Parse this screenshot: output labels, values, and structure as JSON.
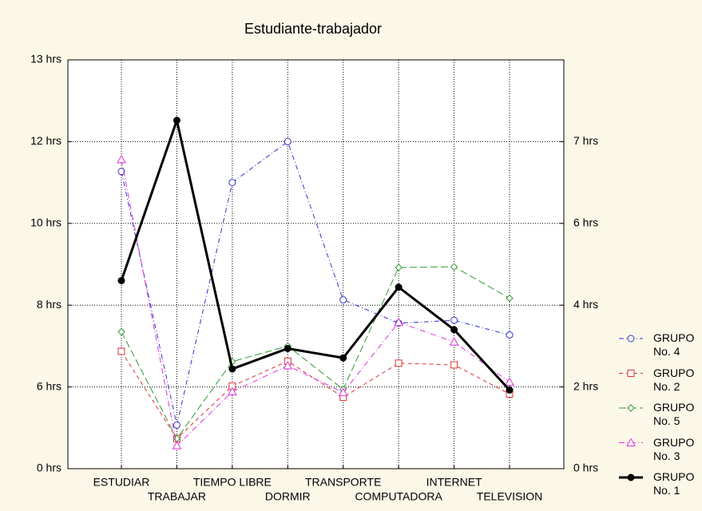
{
  "chart_data": {
    "type": "line",
    "title": "Estudiante-trabajador",
    "categories": [
      "ESTUDIAR",
      "TRABAJAR",
      "TIEMPO LIBRE",
      "DORMIR",
      "TRANSPORTE",
      "COMPUTADORA",
      "INTERNET",
      "TELEVISION"
    ],
    "ylim": [
      0,
      13
    ],
    "yticks": [
      {
        "value": 0,
        "label": "0 hrs"
      },
      {
        "value": 6,
        "label": "6 hrs"
      },
      {
        "value": 8,
        "label": "8 hrs"
      },
      {
        "value": 10,
        "label": "10 hrs"
      },
      {
        "value": 12,
        "label": "12 hrs"
      },
      {
        "value": 13,
        "label": "13 hrs"
      }
    ],
    "y2ticks": [
      {
        "value": 0,
        "label": "0 hrs"
      },
      {
        "value": 2,
        "label": "2 hrs"
      },
      {
        "value": 4,
        "label": "4 hrs"
      },
      {
        "value": 6,
        "label": "6 hrs"
      },
      {
        "value": 7,
        "label": "7 hrs"
      }
    ],
    "grid": true,
    "series": [
      {
        "name": "GRUPO No. 4",
        "color": "#3333cc",
        "values": [
          11.27,
          3.2,
          11.0,
          12.0,
          8.13,
          7.56,
          7.63,
          7.27
        ]
      },
      {
        "name": "GRUPO No. 2",
        "color": "#dd3333",
        "values": [
          6.87,
          2.21,
          6.02,
          6.63,
          5.24,
          6.58,
          6.54,
          5.48
        ]
      },
      {
        "name": "GRUPO No. 5",
        "color": "#339933",
        "values": [
          7.35,
          2.21,
          6.62,
          7.0,
          5.83,
          8.92,
          8.94,
          8.17
        ]
      },
      {
        "name": "GRUPO No. 3",
        "color": "#dd33dd",
        "values": [
          11.56,
          1.69,
          5.65,
          6.52,
          5.59,
          7.58,
          7.1,
          6.12
        ]
      },
      {
        "name": "GRUPO No. 1",
        "color": "#000000",
        "values": [
          8.6,
          12.26,
          6.44,
          6.94,
          6.71,
          8.44,
          7.4,
          5.77
        ]
      }
    ]
  }
}
